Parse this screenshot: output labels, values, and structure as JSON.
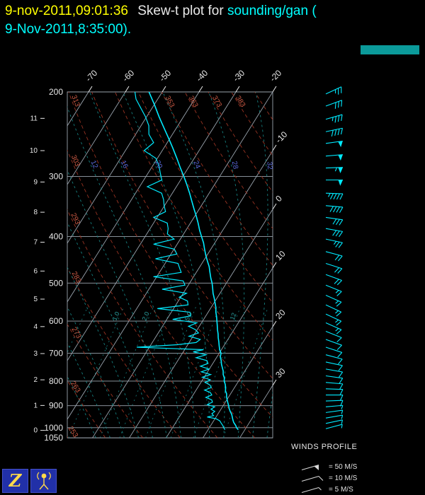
{
  "header": {
    "timestamp": "9-nov-2011,09:01:36",
    "title": "Skew-t plot for",
    "source": "sounding/gan (",
    "subtitle": "9-Nov-2011,8:35:00)."
  },
  "ui": {
    "background": "#000000",
    "timestamp_color": "#ffff00",
    "title_color": "#e8e8e8",
    "link_color": "#00ffff",
    "teal_bar_color": "#0b9a9a",
    "trace_color": "#00eaff",
    "grid_color": "#9aa4ae",
    "dry_adiabat_color": "#993322",
    "dry_adiabat_label_color": "#cc5a44",
    "moist_adiabat_color": "#157f7f",
    "moist_label_color": "#5868d8",
    "mixing_label_color": "#2aa0a0",
    "axis_text_color": "#e8e8e8",
    "button_bg": "#2130a8",
    "icon_color": "#ffd94a"
  },
  "toolbar": {
    "buttons": [
      {
        "name": "zebra",
        "glyph": "Z"
      },
      {
        "name": "radiosonde-launcher"
      }
    ]
  },
  "winds": {
    "title": "WINDS PROFILE",
    "legend": [
      {
        "symbol": "flag",
        "label": "= 50 M/S"
      },
      {
        "symbol": "full",
        "label": "= 10 M/S"
      },
      {
        "symbol": "half",
        "label": "= 5 M/S"
      }
    ]
  },
  "chart_data": {
    "type": "skewt",
    "station": "gan",
    "pressure_axis_hpa": [
      200,
      300,
      400,
      500,
      600,
      700,
      800,
      900,
      1000,
      1050
    ],
    "height_axis_km": [
      11,
      10,
      9,
      8,
      7,
      6,
      5,
      4,
      3,
      2,
      1,
      0
    ],
    "isotherm_step_c": 10,
    "isotherm_labels_top_c": [
      -70,
      -60,
      -50,
      -40,
      -30,
      -20
    ],
    "isotherm_labels_right_c": [
      -10,
      0,
      10,
      20,
      30
    ],
    "dry_adiabats_k": [
      253,
      263,
      273,
      283,
      293,
      303,
      313,
      323,
      333,
      343,
      353,
      363,
      373,
      383,
      393,
      403,
      413
    ],
    "dry_adiabat_labels_left_k": [
      313,
      303,
      293,
      283,
      273,
      263,
      253
    ],
    "dry_adiabat_labels_top_k": [
      353,
      363,
      373,
      383
    ],
    "moist_adiabats_c": [
      -12,
      -8,
      -4,
      0,
      4,
      8,
      12,
      16,
      20,
      24,
      28,
      32,
      36
    ],
    "moist_adiabat_labels_c": [
      12,
      16,
      20,
      24,
      28,
      32
    ],
    "mixing_ratio_lines_gkg": [
      0.4,
      1,
      2,
      3,
      5,
      8,
      12,
      20
    ],
    "mixing_ratio_labels": [
      {
        "value": 1,
        "text": "1.0"
      },
      {
        "value": 2,
        "text": "2.0"
      },
      {
        "value": 5,
        "text": "5.0"
      },
      {
        "value": 12,
        "text": "12"
      }
    ],
    "temperature_trace": [
      [
        1010,
        28.2
      ],
      [
        1000,
        27.4
      ],
      [
        990,
        26.8
      ],
      [
        975,
        25.7
      ],
      [
        962,
        25.0
      ],
      [
        950,
        24.4
      ],
      [
        938,
        23.8
      ],
      [
        925,
        22.9
      ],
      [
        912,
        22.1
      ],
      [
        900,
        21.5
      ],
      [
        888,
        20.8
      ],
      [
        875,
        20.1
      ],
      [
        862,
        19.4
      ],
      [
        850,
        18.9
      ],
      [
        838,
        18.1
      ],
      [
        825,
        17.6
      ],
      [
        812,
        16.9
      ],
      [
        800,
        16.1
      ],
      [
        788,
        15.6
      ],
      [
        775,
        14.7
      ],
      [
        762,
        14.1
      ],
      [
        750,
        13.3
      ],
      [
        738,
        12.5
      ],
      [
        725,
        11.8
      ],
      [
        712,
        10.9
      ],
      [
        700,
        10.5
      ],
      [
        688,
        9.5
      ],
      [
        675,
        8.7
      ],
      [
        662,
        7.9
      ],
      [
        650,
        7.1
      ],
      [
        638,
        6.4
      ],
      [
        625,
        5.5
      ],
      [
        612,
        4.7
      ],
      [
        600,
        3.9
      ],
      [
        588,
        3.1
      ],
      [
        575,
        2.1
      ],
      [
        562,
        1.3
      ],
      [
        550,
        0.3
      ],
      [
        538,
        -0.7
      ],
      [
        525,
        -1.9
      ],
      [
        512,
        -2.9
      ],
      [
        500,
        -3.9
      ],
      [
        488,
        -5.1
      ],
      [
        475,
        -6.3
      ],
      [
        462,
        -7.5
      ],
      [
        450,
        -8.9
      ],
      [
        438,
        -10.3
      ],
      [
        425,
        -11.7
      ],
      [
        412,
        -13.1
      ],
      [
        400,
        -14.7
      ],
      [
        388,
        -16.3
      ],
      [
        375,
        -17.9
      ],
      [
        362,
        -19.7
      ],
      [
        350,
        -21.5
      ],
      [
        338,
        -23.3
      ],
      [
        325,
        -25.3
      ],
      [
        312,
        -27.5
      ],
      [
        300,
        -29.7
      ],
      [
        288,
        -32.1
      ],
      [
        275,
        -34.7
      ],
      [
        262,
        -37.5
      ],
      [
        250,
        -40.3
      ],
      [
        238,
        -43.3
      ],
      [
        225,
        -46.7
      ],
      [
        212,
        -50.1
      ],
      [
        200,
        -53.6
      ]
    ],
    "dewpoint_trace": [
      [
        1010,
        24.6
      ],
      [
        1000,
        23.9
      ],
      [
        990,
        23.3
      ],
      [
        978,
        22.4
      ],
      [
        968,
        21.7
      ],
      [
        958,
        20.3
      ],
      [
        950,
        17.6
      ],
      [
        944,
        19.1
      ],
      [
        935,
        18.3
      ],
      [
        925,
        18.7
      ],
      [
        915,
        17.3
      ],
      [
        905,
        17.9
      ],
      [
        895,
        15.5
      ],
      [
        885,
        16.5
      ],
      [
        875,
        15.9
      ],
      [
        865,
        13.9
      ],
      [
        855,
        15.1
      ],
      [
        845,
        14.3
      ],
      [
        835,
        12.3
      ],
      [
        825,
        13.7
      ],
      [
        815,
        12.9
      ],
      [
        805,
        11.1
      ],
      [
        795,
        12.1
      ],
      [
        785,
        9.5
      ],
      [
        775,
        11.3
      ],
      [
        765,
        8.3
      ],
      [
        755,
        9.9
      ],
      [
        745,
        7.1
      ],
      [
        735,
        8.7
      ],
      [
        725,
        7.9
      ],
      [
        715,
        4.5
      ],
      [
        705,
        6.7
      ],
      [
        695,
        2.7
      ],
      [
        688,
        5.1
      ],
      [
        680,
        -13.4
      ],
      [
        672,
        -2.9
      ],
      [
        665,
        1.9
      ],
      [
        655,
        2.5
      ],
      [
        645,
        -1.1
      ],
      [
        635,
        0.9
      ],
      [
        625,
        -0.5
      ],
      [
        615,
        -2.9
      ],
      [
        605,
        -1.3
      ],
      [
        595,
        -8.4
      ],
      [
        585,
        -4.1
      ],
      [
        575,
        -4.9
      ],
      [
        565,
        -14.4
      ],
      [
        555,
        -6.7
      ],
      [
        545,
        -7.5
      ],
      [
        535,
        -10.4
      ],
      [
        525,
        -9.1
      ],
      [
        515,
        -16.4
      ],
      [
        505,
        -10.9
      ],
      [
        495,
        -12.1
      ],
      [
        485,
        -20.9
      ],
      [
        475,
        -14.1
      ],
      [
        465,
        -15.3
      ],
      [
        455,
        -16.5
      ],
      [
        445,
        -23.4
      ],
      [
        435,
        -18.4
      ],
      [
        425,
        -19.9
      ],
      [
        415,
        -26.4
      ],
      [
        405,
        -21.7
      ],
      [
        395,
        -24.4
      ],
      [
        385,
        -25.1
      ],
      [
        375,
        -26.3
      ],
      [
        365,
        -30.9
      ],
      [
        355,
        -28.7
      ],
      [
        345,
        -30.1
      ],
      [
        335,
        -31.3
      ],
      [
        325,
        -32.9
      ],
      [
        315,
        -37.9
      ],
      [
        305,
        -35.1
      ],
      [
        295,
        -36.7
      ],
      [
        285,
        -38.3
      ],
      [
        275,
        -40.4
      ],
      [
        265,
        -44.9
      ],
      [
        255,
        -43.7
      ],
      [
        245,
        -46.4
      ],
      [
        235,
        -47.9
      ],
      [
        225,
        -50.4
      ],
      [
        215,
        -53.4
      ],
      [
        207,
        -55.9
      ],
      [
        200,
        -57.4
      ]
    ],
    "wind_profile_ms": [
      [
        1005,
        5,
        75
      ],
      [
        980,
        6,
        78
      ],
      [
        955,
        6,
        80
      ],
      [
        930,
        7,
        82
      ],
      [
        905,
        7,
        85
      ],
      [
        880,
        8,
        88
      ],
      [
        855,
        8,
        90
      ],
      [
        830,
        8,
        92
      ],
      [
        805,
        9,
        95
      ],
      [
        780,
        9,
        98
      ],
      [
        755,
        10,
        100
      ],
      [
        730,
        10,
        102
      ],
      [
        705,
        11,
        105
      ],
      [
        680,
        11,
        108
      ],
      [
        655,
        12,
        110
      ],
      [
        630,
        12,
        112
      ],
      [
        605,
        13,
        114
      ],
      [
        580,
        14,
        115
      ],
      [
        555,
        15,
        115
      ],
      [
        530,
        16,
        114
      ],
      [
        505,
        17,
        112
      ],
      [
        480,
        18,
        110
      ],
      [
        455,
        20,
        108
      ],
      [
        430,
        22,
        105
      ],
      [
        405,
        25,
        102
      ],
      [
        385,
        28,
        100
      ],
      [
        365,
        32,
        98
      ],
      [
        345,
        38,
        95
      ],
      [
        325,
        45,
        92
      ],
      [
        305,
        52,
        90
      ],
      [
        288,
        55,
        88
      ],
      [
        272,
        52,
        85
      ],
      [
        256,
        48,
        82
      ],
      [
        242,
        42,
        78
      ],
      [
        228,
        36,
        74
      ],
      [
        214,
        30,
        70
      ],
      [
        202,
        25,
        65
      ]
    ]
  }
}
